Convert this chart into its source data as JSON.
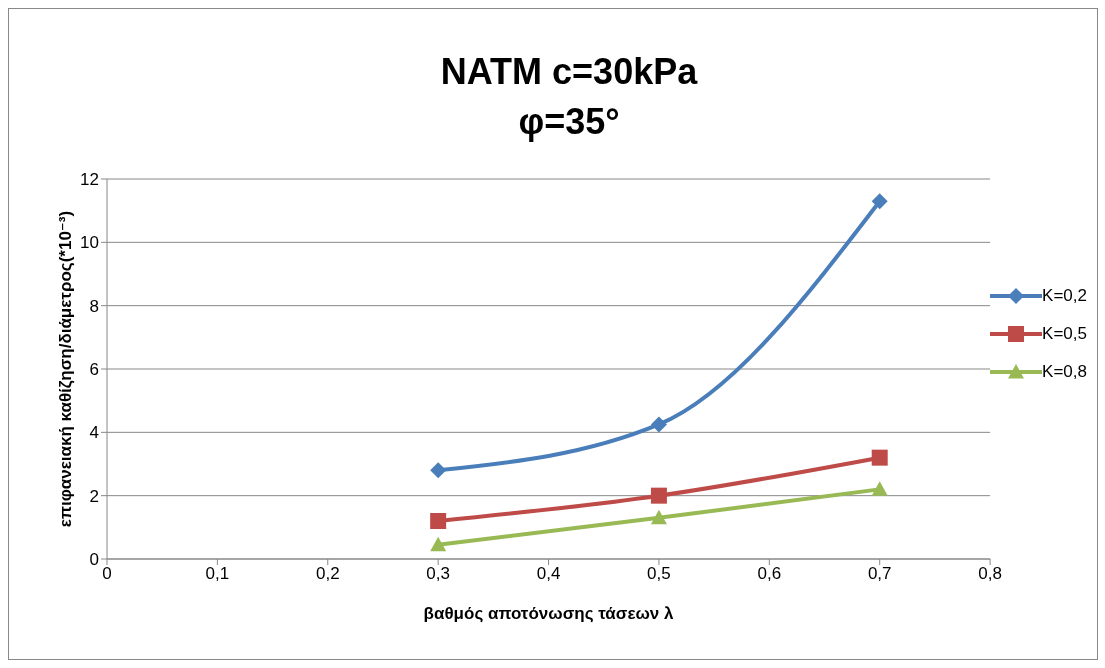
{
  "chart_data": {
    "type": "line",
    "title": "NATM c=30kPa\nφ=35°",
    "xlabel": "βαθμός αποτόνωσης τάσεων λ",
    "ylabel": "επιφανειακή καθίζηση/διάμετρος(*10⁻³)",
    "x": [
      0.3,
      0.5,
      0.7
    ],
    "series": [
      {
        "name": "K=0,2",
        "color": "#4a7ebb",
        "marker": "diamond",
        "values": [
          2.8,
          4.25,
          11.3
        ]
      },
      {
        "name": "K=0,5",
        "color": "#be4b48",
        "marker": "square",
        "values": [
          1.2,
          2.0,
          3.2
        ]
      },
      {
        "name": "K=0,8",
        "color": "#98b954",
        "marker": "triangle",
        "values": [
          0.45,
          1.3,
          2.2
        ]
      }
    ],
    "xlim": [
      0,
      0.8
    ],
    "xticks": [
      0,
      {
        "value": 0.1,
        "label": "0,1"
      },
      {
        "value": 0.2,
        "label": "0,2"
      },
      {
        "value": 0.3,
        "label": "0,3"
      },
      {
        "value": 0.4,
        "label": "0,4"
      },
      {
        "value": 0.5,
        "label": "0,5"
      },
      {
        "value": 0.6,
        "label": "0,6"
      },
      {
        "value": 0.7,
        "label": "0,7"
      },
      {
        "value": 0.8,
        "label": "0,8"
      }
    ],
    "ylim": [
      0,
      12
    ],
    "yticks": [
      0,
      2,
      4,
      6,
      8,
      10,
      12
    ],
    "grid": "y",
    "legend": "right",
    "line_style": "solid"
  }
}
